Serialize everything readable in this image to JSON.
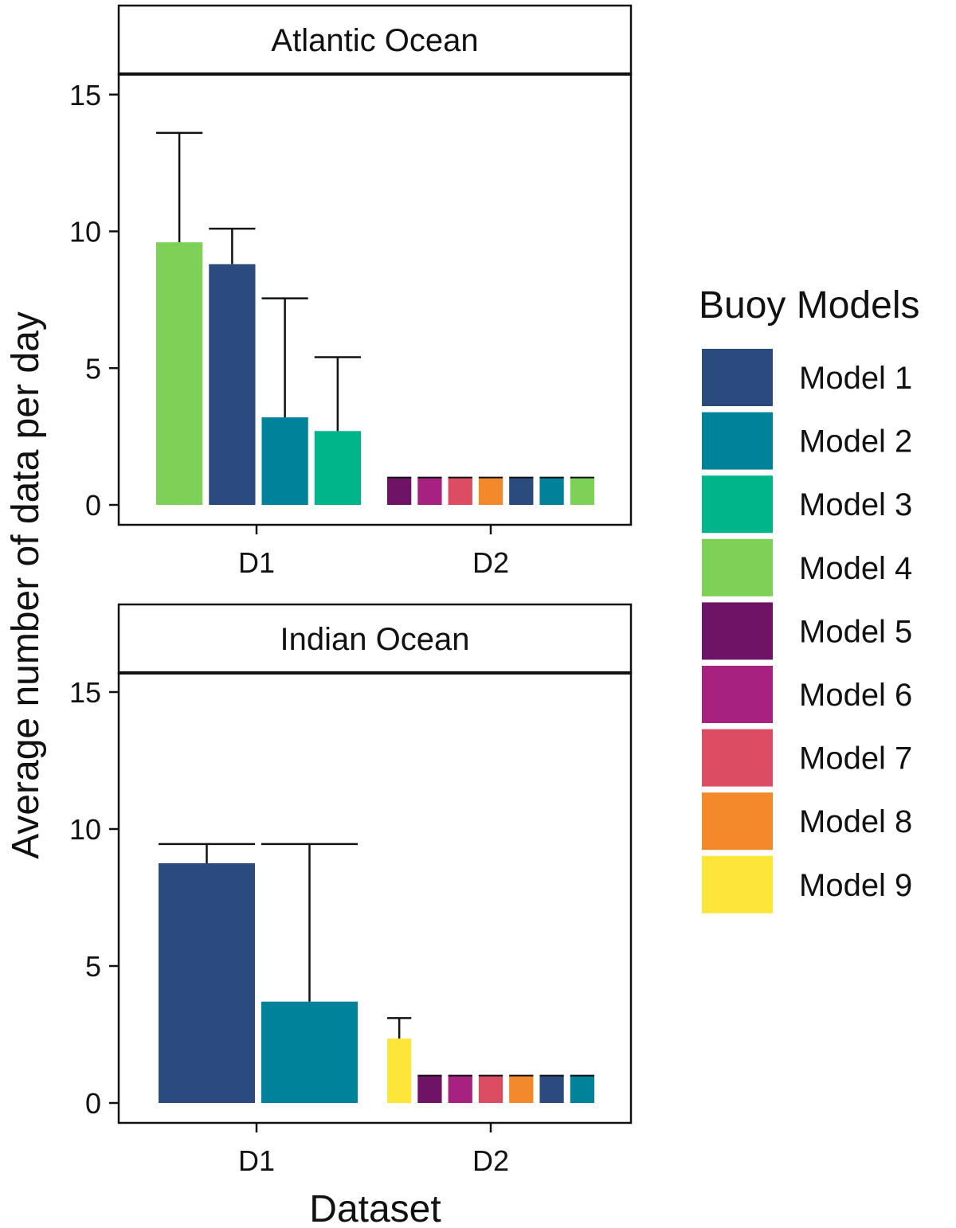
{
  "chart_data": {
    "type": "bar",
    "ylabel": "Average number of data per day",
    "xlabel": "Dataset",
    "ylim": [
      0,
      17.5
    ],
    "yticks": [
      0,
      5,
      10,
      15
    ],
    "categories": [
      "D1",
      "D2"
    ],
    "grid": false,
    "legend": {
      "title": "Buoy Models",
      "placement": "right",
      "entries": [
        {
          "name": "Model 1",
          "color": "#2b4a7e"
        },
        {
          "name": "Model 2",
          "color": "#00829a"
        },
        {
          "name": "Model 3",
          "color": "#00b58a"
        },
        {
          "name": "Model 4",
          "color": "#7ed157"
        },
        {
          "name": "Model 5",
          "color": "#6e1366"
        },
        {
          "name": "Model 6",
          "color": "#a62180"
        },
        {
          "name": "Model 7",
          "color": "#dc4c62"
        },
        {
          "name": "Model 8",
          "color": "#f4892c"
        },
        {
          "name": "Model 9",
          "color": "#fde53a"
        }
      ]
    },
    "panels": [
      {
        "title": "Atlantic Ocean",
        "groups": [
          {
            "category": "D1",
            "bars": [
              {
                "model": "Model 4",
                "value": 9.6,
                "error_upper": 13.6
              },
              {
                "model": "Model 1",
                "value": 8.8,
                "error_upper": 10.1
              },
              {
                "model": "Model 2",
                "value": 3.2,
                "error_upper": 7.55
              },
              {
                "model": "Model 3",
                "value": 2.7,
                "error_upper": 5.4
              }
            ]
          },
          {
            "category": "D2",
            "bars": [
              {
                "model": "Model 5",
                "value": 1.0,
                "error_upper": 1.0
              },
              {
                "model": "Model 6",
                "value": 1.0,
                "error_upper": 1.0
              },
              {
                "model": "Model 7",
                "value": 1.0,
                "error_upper": 1.0
              },
              {
                "model": "Model 8",
                "value": 1.0,
                "error_upper": 1.0
              },
              {
                "model": "Model 1",
                "value": 1.0,
                "error_upper": 1.0
              },
              {
                "model": "Model 2",
                "value": 1.0,
                "error_upper": 1.0
              },
              {
                "model": "Model 4",
                "value": 1.0,
                "error_upper": 1.0
              }
            ]
          }
        ]
      },
      {
        "title": "Indian Ocean",
        "groups": [
          {
            "category": "D1",
            "bars": [
              {
                "model": "Model 1",
                "value": 8.75,
                "error_upper": 9.45
              },
              {
                "model": "Model 2",
                "value": 3.7,
                "error_upper": 9.45
              }
            ]
          },
          {
            "category": "D2",
            "bars": [
              {
                "model": "Model 9",
                "value": 2.35,
                "error_upper": 3.1
              },
              {
                "model": "Model 5",
                "value": 1.0,
                "error_upper": 1.0
              },
              {
                "model": "Model 6",
                "value": 1.0,
                "error_upper": 1.0
              },
              {
                "model": "Model 7",
                "value": 1.0,
                "error_upper": 1.0
              },
              {
                "model": "Model 8",
                "value": 1.0,
                "error_upper": 1.0
              },
              {
                "model": "Model 1",
                "value": 1.0,
                "error_upper": 1.0
              },
              {
                "model": "Model 2",
                "value": 1.0,
                "error_upper": 1.0
              }
            ]
          }
        ]
      }
    ]
  }
}
